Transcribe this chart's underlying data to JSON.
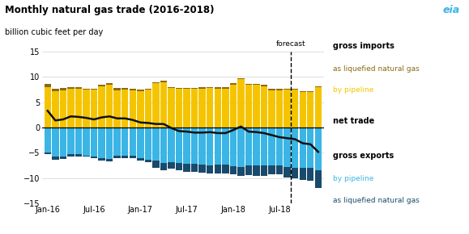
{
  "title": "Monthly natural gas trade (2016-2018)",
  "subtitle": "billion cubic feet per day",
  "ylim": [
    -15,
    15
  ],
  "yticks": [
    -15,
    -10,
    -5,
    0,
    5,
    10,
    15
  ],
  "xtick_labels": [
    "Jan-16",
    "Jul-16",
    "Jan-17",
    "Jul-17",
    "Jan-18",
    "Jul-18"
  ],
  "xtick_positions": [
    0,
    6,
    12,
    18,
    24,
    30
  ],
  "forecast_label": "forecast",
  "legend_gross_imports": "gross imports",
  "legend_lng_imports": "as liquefied natural gas",
  "legend_pipeline_imports": "by pipeline",
  "legend_net_trade": "net trade",
  "legend_gross_exports": "gross exports",
  "legend_pipeline_exports": "by pipeline",
  "legend_lng_exports": "as liquefied natural gas",
  "color_pipeline_imports": "#f5c400",
  "color_lng_imports": "#8B6914",
  "color_pipeline_exports": "#3ab5e5",
  "color_lng_exports": "#1a4a6b",
  "color_net_trade": "#111111",
  "months": 36,
  "pipeline_imports": [
    7.9,
    7.2,
    7.4,
    7.6,
    7.6,
    7.5,
    7.5,
    8.2,
    8.5,
    7.4,
    7.5,
    7.3,
    7.2,
    7.5,
    8.7,
    9.0,
    7.8,
    7.6,
    7.6,
    7.6,
    7.7,
    7.8,
    7.7,
    7.7,
    8.5,
    9.5,
    8.4,
    8.4,
    8.2,
    7.3,
    7.4,
    7.5,
    7.5,
    7.0,
    7.0,
    8.0
  ],
  "lng_imports": [
    0.7,
    0.5,
    0.4,
    0.4,
    0.3,
    0.2,
    0.2,
    0.3,
    0.3,
    0.4,
    0.3,
    0.3,
    0.3,
    0.2,
    0.2,
    0.2,
    0.2,
    0.2,
    0.2,
    0.2,
    0.2,
    0.2,
    0.2,
    0.2,
    0.2,
    0.2,
    0.2,
    0.2,
    0.2,
    0.4,
    0.2,
    0.2,
    0.2,
    0.2,
    0.2,
    0.2
  ],
  "pipeline_exports": [
    -5.0,
    -5.8,
    -5.8,
    -5.2,
    -5.2,
    -5.5,
    -5.7,
    -6.0,
    -6.2,
    -5.5,
    -5.5,
    -5.6,
    -6.0,
    -6.3,
    -6.5,
    -7.0,
    -6.8,
    -7.0,
    -7.1,
    -7.2,
    -7.3,
    -7.4,
    -7.3,
    -7.3,
    -7.6,
    -7.8,
    -7.5,
    -7.5,
    -7.5,
    -7.5,
    -7.5,
    -7.8,
    -7.9,
    -8.0,
    -8.0,
    -8.5
  ],
  "lng_exports": [
    -0.3,
    -0.5,
    -0.4,
    -0.6,
    -0.6,
    -0.3,
    -0.4,
    -0.5,
    -0.4,
    -0.5,
    -0.5,
    -0.5,
    -0.5,
    -0.5,
    -1.5,
    -1.5,
    -1.3,
    -1.5,
    -1.6,
    -1.6,
    -1.6,
    -1.6,
    -1.7,
    -1.7,
    -1.6,
    -1.7,
    -1.9,
    -2.0,
    -2.0,
    -1.7,
    -1.8,
    -2.0,
    -2.1,
    -2.3,
    -2.5,
    -3.5
  ],
  "net_trade": [
    3.3,
    1.4,
    1.6,
    2.2,
    2.1,
    1.9,
    1.6,
    2.0,
    2.2,
    1.8,
    1.8,
    1.5,
    1.0,
    0.9,
    0.7,
    0.7,
    -0.1,
    -0.7,
    -0.8,
    -1.0,
    -1.0,
    -0.9,
    -1.1,
    -1.1,
    -0.5,
    0.2,
    -0.8,
    -0.9,
    -1.1,
    -1.5,
    -1.9,
    -2.1,
    -2.3,
    -3.1,
    -3.3,
    -4.8
  ],
  "forecast_month_idx": 32,
  "background_color": "#ffffff",
  "grid_color": "#d0d0d0"
}
